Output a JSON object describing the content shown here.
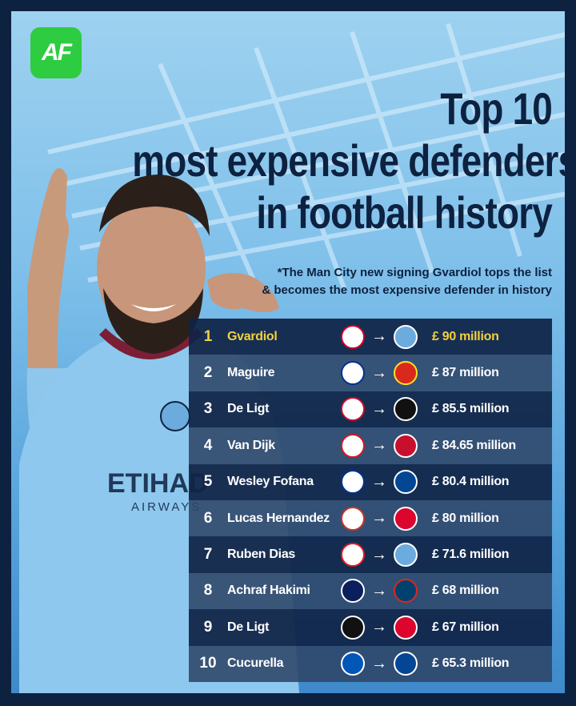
{
  "brand": {
    "logo_text": "AF",
    "logo_color": "#2ecc40"
  },
  "title": {
    "line1": "Top 10",
    "line2": "most expensive defenders",
    "line3": "in football history"
  },
  "note": {
    "line1": "*The Man City new signing Gvardiol tops the list",
    "line2": "& becomes the most expensive defender in history"
  },
  "colors": {
    "navy": "#0d2140",
    "highlight": "#f4d03f",
    "sky": "#7fc0ea"
  },
  "rows": [
    {
      "rank": "1",
      "name": "Gvardiol",
      "from": "RB Leipzig",
      "to": "Manchester City",
      "fee": "£  90 million"
    },
    {
      "rank": "2",
      "name": "Maguire",
      "from": "Leicester City",
      "to": "Manchester United",
      "fee": "£ 87 million"
    },
    {
      "rank": "3",
      "name": "De Ligt",
      "from": "Ajax",
      "to": "Juventus",
      "fee": "£ 85.5 million"
    },
    {
      "rank": "4",
      "name": "Van Dijk",
      "from": "Southampton",
      "to": "Liverpool",
      "fee": "£ 84.65 million"
    },
    {
      "rank": "5",
      "name": "Wesley Fofana",
      "from": "Leicester City",
      "to": "Chelsea",
      "fee": "£ 80.4 million"
    },
    {
      "rank": "6",
      "name": "Lucas Hernandez",
      "from": "Atletico Madrid",
      "to": "Bayern Munich",
      "fee": "£ 80 million"
    },
    {
      "rank": "7",
      "name": "Ruben Dias",
      "from": "Benfica",
      "to": "Manchester City",
      "fee": "£ 71.6 million"
    },
    {
      "rank": "8",
      "name": "Achraf Hakimi",
      "from": "Inter",
      "to": "PSG",
      "fee": "£ 68 million"
    },
    {
      "rank": "9",
      "name": "De Ligt",
      "from": "Juventus",
      "to": "Bayern Munich",
      "fee": "£ 67 million"
    },
    {
      "rank": "10",
      "name": "Cucurella",
      "from": "Brighton",
      "to": "Chelsea",
      "fee": "£ 65.3 million"
    }
  ],
  "shirt": {
    "sponsor": "ETIHAD",
    "sponsor_sub": "AIRWAYS"
  }
}
